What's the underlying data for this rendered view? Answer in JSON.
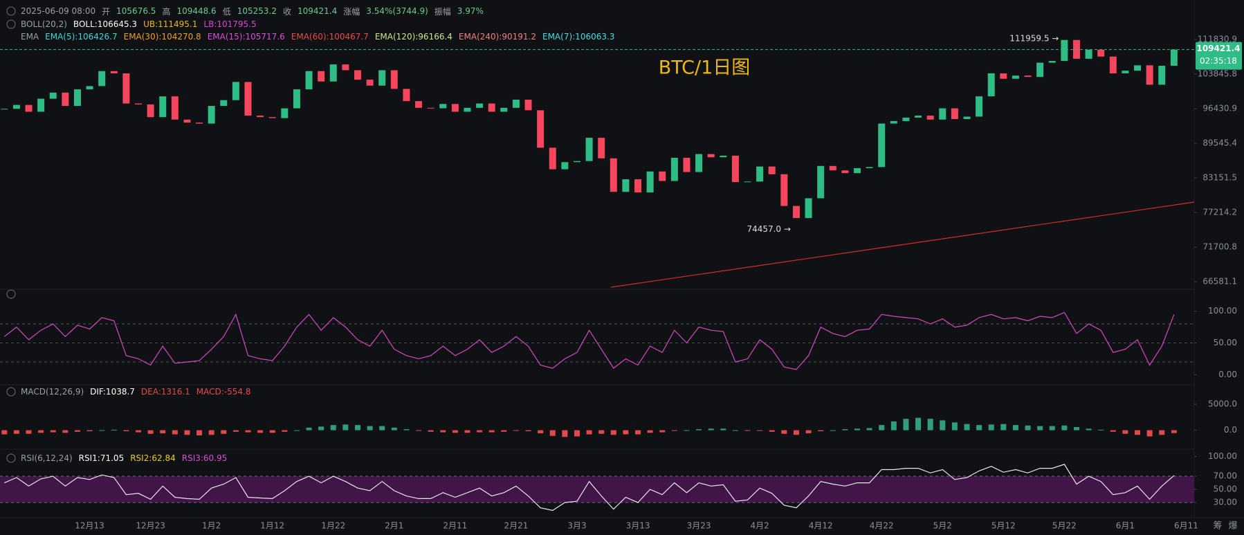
{
  "header": {
    "datetime": "2025-06-09 08:00",
    "items": [
      {
        "label": "开",
        "value": "105676.5"
      },
      {
        "label": "高",
        "value": "109448.6"
      },
      {
        "label": "低",
        "value": "105253.2"
      },
      {
        "label": "收",
        "value": "109421.4"
      },
      {
        "label": "涨幅",
        "value": "3.54%(3744.9)"
      },
      {
        "label": "振幅",
        "value": "3.97%"
      }
    ]
  },
  "legends": [
    {
      "name": "BOLL(20,2)",
      "items": [
        {
          "text": "BOLL:106645.3",
          "color": "#ffffff"
        },
        {
          "text": "UB:111495.1",
          "color": "#f0b90b"
        },
        {
          "text": "LB:101795.5",
          "color": "#e040e0"
        }
      ]
    },
    {
      "name": "EMA",
      "items": [
        {
          "text": "EMA(5):106426.7",
          "color": "#3ed8d8"
        },
        {
          "text": "EMA(30):104270.8",
          "color": "#f0a020"
        },
        {
          "text": "EMA(15):105717.6",
          "color": "#d94fd9"
        },
        {
          "text": "EMA(60):100467.7",
          "color": "#e84a4a"
        },
        {
          "text": "EMA(120):96166.4",
          "color": "#c8e88a"
        },
        {
          "text": "EMA(240):90191.2",
          "color": "#f08080"
        },
        {
          "text": "EMA(7):106063.3",
          "color": "#40e0e0"
        }
      ]
    },
    {
      "name": "MACD(12,26,9)",
      "items": [
        {
          "text": "DIF:1038.7",
          "color": "#ffffff"
        },
        {
          "text": "DEA:1316.1",
          "color": "#e84a4a"
        },
        {
          "text": "MACD:-554.8",
          "color": "#e84a4a"
        }
      ]
    },
    {
      "name": "RSI(6,12,24)",
      "items": [
        {
          "text": "RSI1:71.05",
          "color": "#ffffff"
        },
        {
          "text": "RSI2:62.84",
          "color": "#f0d000"
        },
        {
          "text": "RSI3:60.95",
          "color": "#d94fd9"
        }
      ]
    }
  ],
  "watermark": "BTC/1日图",
  "footer_icons": [
    "筹",
    "爆"
  ],
  "chart_data": [
    {
      "type": "candlestick",
      "categories": [
        null,
        null,
        null,
        null,
        null,
        null,
        null,
        "12月13",
        null,
        null,
        null,
        null,
        "12月23",
        null,
        null,
        null,
        null,
        "1月2",
        null,
        null,
        null,
        null,
        "1月12",
        null,
        null,
        null,
        null,
        "1月22",
        null,
        null,
        null,
        null,
        "2月1",
        null,
        null,
        null,
        null,
        "2月11",
        null,
        null,
        null,
        null,
        "2月21",
        null,
        null,
        null,
        null,
        "3月3",
        null,
        null,
        null,
        null,
        "3月13",
        null,
        null,
        null,
        null,
        "3月23",
        null,
        null,
        null,
        null,
        "4月2",
        null,
        null,
        null,
        null,
        "4月12",
        null,
        null,
        null,
        null,
        "4月22",
        null,
        null,
        null,
        null,
        "5月2",
        null,
        null,
        null,
        null,
        "5月12",
        null,
        null,
        null,
        null,
        "5月22",
        null,
        null,
        null,
        null,
        "6月1",
        null,
        null,
        null,
        null,
        "6月11"
      ],
      "values": [
        96400,
        97200,
        95800,
        98500,
        99800,
        97000,
        100500,
        101200,
        104500,
        104000,
        97500,
        97300,
        94700,
        99000,
        94200,
        93600,
        93400,
        97000,
        98200,
        102100,
        95000,
        94700,
        94500,
        96500,
        100500,
        104500,
        102200,
        106000,
        104700,
        102600,
        101300,
        104700,
        100600,
        98000,
        96600,
        96500,
        97400,
        95800,
        96600,
        97500,
        95800,
        96600,
        98300,
        96100,
        88700,
        84700,
        86000,
        86200,
        90600,
        86700,
        80700,
        82900,
        80600,
        84300,
        82600,
        86800,
        84200,
        87500,
        86900,
        87200,
        82400,
        82500,
        85200,
        83800,
        78300,
        76300,
        79600,
        85300,
        84500,
        84000,
        84900,
        85100,
        93400,
        93900,
        94600,
        95000,
        94200,
        96500,
        94300,
        94800,
        99000,
        104000,
        102800,
        103500,
        103200,
        106400,
        106800,
        111700,
        107300,
        109400,
        107800,
        104000,
        104600,
        105800,
        101500,
        105700,
        109421.4,
        null
      ],
      "up_color": "#2ebd85",
      "down_color": "#f6465d",
      "log": true,
      "ylim": [
        65800,
        115700
      ],
      "yticks": [
        111830.9,
        103845.8,
        96430.9,
        89545.4,
        83151.5,
        77214.2,
        71700.8,
        66581.1
      ],
      "last_price": 109421.4,
      "countdown": "02:35:18",
      "high": {
        "value": 111959.5,
        "label": "111959.5 →"
      },
      "low": {
        "value": 74457,
        "label": "74457.0 →"
      }
    },
    {
      "type": "line",
      "ylim": [
        -15,
        127
      ],
      "yticks": [
        {
          "value": 100,
          "label": "100.00"
        },
        {
          "value": 50,
          "label": "50.00"
        },
        {
          "value": 0,
          "label": "0.00"
        }
      ],
      "guides": [
        80,
        50,
        20
      ],
      "series": [
        {
          "color": "#d946c9",
          "values": [
            60,
            75,
            55,
            70,
            80,
            60,
            78,
            72,
            90,
            85,
            30,
            25,
            15,
            45,
            18,
            20,
            22,
            40,
            60,
            95,
            30,
            25,
            22,
            45,
            75,
            95,
            70,
            90,
            75,
            55,
            45,
            70,
            40,
            30,
            25,
            30,
            45,
            30,
            40,
            55,
            35,
            45,
            60,
            45,
            15,
            10,
            25,
            35,
            70,
            40,
            10,
            25,
            15,
            45,
            35,
            70,
            50,
            75,
            70,
            68,
            20,
            25,
            55,
            40,
            12,
            8,
            30,
            75,
            65,
            60,
            70,
            72,
            95,
            92,
            90,
            88,
            80,
            88,
            75,
            78,
            90,
            95,
            88,
            90,
            85,
            92,
            90,
            98,
            65,
            80,
            70,
            35,
            40,
            55,
            15,
            45,
            95,
            null
          ]
        }
      ]
    },
    {
      "type": "bar",
      "ylim": [
        -3800,
        6900
      ],
      "yticks": [
        {
          "value": 5000,
          "label": "5000.0"
        },
        {
          "value": 0,
          "label": "0.0"
        }
      ],
      "up_color": "#2e9e7e",
      "down_color": "#e04a4a",
      "values": [
        -800,
        -700,
        -700,
        -500,
        -400,
        -500,
        -300,
        -200,
        0,
        100,
        -200,
        -400,
        -700,
        -600,
        -800,
        -900,
        -1000,
        -900,
        -700,
        -300,
        -400,
        -500,
        -500,
        -300,
        0,
        500,
        700,
        1000,
        1100,
        1000,
        800,
        800,
        500,
        200,
        -100,
        -300,
        -400,
        -500,
        -500,
        -400,
        -400,
        -300,
        -100,
        -200,
        -600,
        -1100,
        -1300,
        -1200,
        -800,
        -700,
        -900,
        -800,
        -800,
        -500,
        -400,
        -100,
        0,
        200,
        300,
        300,
        0,
        -100,
        -100,
        -300,
        -700,
        -900,
        -600,
        -200,
        0,
        200,
        300,
        400,
        1000,
        1700,
        2200,
        2400,
        2200,
        1900,
        1500,
        1200,
        1000,
        1100,
        1200,
        1000,
        900,
        800,
        800,
        900,
        600,
        300,
        100,
        -300,
        -700,
        -900,
        -1200,
        -900,
        -554.8,
        null
      ]
    },
    {
      "type": "line",
      "ylim": [
        7,
        110
      ],
      "yticks": [
        {
          "value": 100,
          "label": "100.00"
        },
        {
          "value": 70,
          "label": "70.00"
        },
        {
          "value": 50,
          "label": "50.00"
        },
        {
          "value": 30,
          "label": "30.00"
        }
      ],
      "band": [
        30,
        70
      ],
      "band_color": "#4a1650",
      "series": [
        {
          "color": "#e8e8e8",
          "values": [
            60,
            68,
            55,
            66,
            70,
            55,
            68,
            65,
            72,
            68,
            42,
            44,
            35,
            55,
            38,
            36,
            35,
            52,
            58,
            68,
            38,
            37,
            36,
            48,
            62,
            70,
            60,
            70,
            62,
            52,
            48,
            62,
            48,
            40,
            36,
            36,
            45,
            38,
            45,
            52,
            40,
            45,
            55,
            40,
            22,
            18,
            30,
            32,
            62,
            40,
            20,
            38,
            30,
            50,
            42,
            60,
            45,
            60,
            55,
            57,
            32,
            34,
            52,
            44,
            26,
            22,
            40,
            62,
            58,
            55,
            60,
            60,
            80,
            80,
            82,
            82,
            75,
            80,
            65,
            68,
            78,
            85,
            76,
            80,
            75,
            82,
            82,
            88,
            58,
            70,
            62,
            42,
            45,
            55,
            35,
            55,
            71.05,
            null
          ]
        }
      ]
    }
  ]
}
